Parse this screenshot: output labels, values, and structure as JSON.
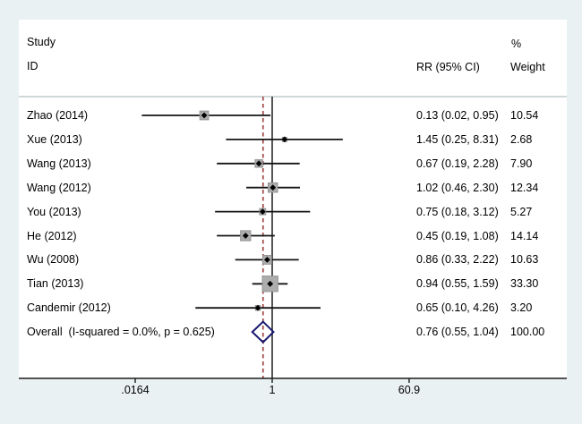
{
  "header": {
    "col_study_line1": "Study",
    "col_study_line2": "ID",
    "col_rr": "RR (95% CI)",
    "col_pct": "%",
    "col_weight": "Weight"
  },
  "chart_data": {
    "type": "forest",
    "x_scale": "log10",
    "x_range": [
      0.0164,
      60.9
    ],
    "xticks": [
      {
        "value": 0.0164,
        "label": ".0164"
      },
      {
        "value": 1,
        "label": "1"
      },
      {
        "value": 60.9,
        "label": "60.9"
      }
    ],
    "null_line_value": 1,
    "overall_dashed_value": 0.76,
    "studies": [
      {
        "label": "Zhao (2014)",
        "rr": 0.13,
        "lo": 0.02,
        "hi": 0.95,
        "weight": 10.54,
        "rr_text": "0.13 (0.02, 0.95)",
        "weight_text": "10.54"
      },
      {
        "label": "Xue (2013)",
        "rr": 1.45,
        "lo": 0.25,
        "hi": 8.31,
        "weight": 2.68,
        "rr_text": "1.45 (0.25, 8.31)",
        "weight_text": "2.68"
      },
      {
        "label": "Wang (2013)",
        "rr": 0.67,
        "lo": 0.19,
        "hi": 2.28,
        "weight": 7.9,
        "rr_text": "0.67 (0.19, 2.28)",
        "weight_text": "7.90"
      },
      {
        "label": "Wang (2012)",
        "rr": 1.02,
        "lo": 0.46,
        "hi": 2.3,
        "weight": 12.34,
        "rr_text": "1.02 (0.46, 2.30)",
        "weight_text": "12.34"
      },
      {
        "label": "You (2013)",
        "rr": 0.75,
        "lo": 0.18,
        "hi": 3.12,
        "weight": 5.27,
        "rr_text": "0.75 (0.18, 3.12)",
        "weight_text": "5.27"
      },
      {
        "label": "He (2012)",
        "rr": 0.45,
        "lo": 0.19,
        "hi": 1.08,
        "weight": 14.14,
        "rr_text": "0.45 (0.19, 1.08)",
        "weight_text": "14.14"
      },
      {
        "label": "Wu (2008)",
        "rr": 0.86,
        "lo": 0.33,
        "hi": 2.22,
        "weight": 10.63,
        "rr_text": "0.86 (0.33, 2.22)",
        "weight_text": "10.63"
      },
      {
        "label": "Tian (2013)",
        "rr": 0.94,
        "lo": 0.55,
        "hi": 1.59,
        "weight": 33.3,
        "rr_text": "0.94 (0.55, 1.59)",
        "weight_text": "33.30"
      },
      {
        "label": "Candemir (2012)",
        "rr": 0.65,
        "lo": 0.1,
        "hi": 4.26,
        "weight": 3.2,
        "rr_text": "0.65 (0.10, 4.26)",
        "weight_text": "3.20"
      }
    ],
    "overall": {
      "label": "Overall  (I-squared = 0.0%, p = 0.625)",
      "rr": 0.76,
      "lo": 0.55,
      "hi": 1.04,
      "rr_text": "0.76 (0.55, 1.04)",
      "weight_text": "100.00"
    }
  },
  "colors": {
    "background": "#eaf1f3",
    "panel": "#ffffff",
    "text": "#000000",
    "separator": "#b5bfc2",
    "axis": "#1a1a1a",
    "ci_line": "#141414",
    "marker_fill": "#adadad",
    "marker_border": "#939393",
    "point": "#000000",
    "diamond_border": "#191970",
    "null_line": "#2b2b2b",
    "overall_dashed": "#a34a46"
  }
}
